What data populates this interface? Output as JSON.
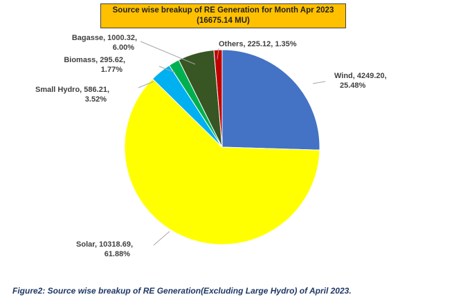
{
  "chart_data": {
    "type": "pie",
    "title": "Source wise breakup of RE Generation for Month Apr 2023",
    "subtitle": "(16675.14 MU)",
    "slices": [
      {
        "name": "Wind",
        "value": 4249.2,
        "percent": "25.48%",
        "value_label": "4249.20",
        "color": "#4472c4",
        "label_line1": "Wind, 4249.20,",
        "label_line2": "25.48%"
      },
      {
        "name": "Solar",
        "value": 10318.69,
        "percent": "61.88%",
        "value_label": "10318.69",
        "color": "#ffff00",
        "label_line1": "Solar, 10318.69,",
        "label_line2": "61.88%"
      },
      {
        "name": "Small Hydro",
        "value": 586.21,
        "percent": "3.52%",
        "value_label": "586.21",
        "color": "#00b0f0",
        "label_line1": "Small Hydro, 586.21,",
        "label_line2": "3.52%"
      },
      {
        "name": "Biomass",
        "value": 295.62,
        "percent": "1.77%",
        "value_label": "295.62",
        "color": "#00b050",
        "label_line1": "Biomass, 295.62,",
        "label_line2": "1.77%"
      },
      {
        "name": "Bagasse",
        "value": 1000.32,
        "percent": "6.00%",
        "value_label": "1000.32",
        "color": "#375623",
        "label_line1": "Bagasse, 1000.32,",
        "label_line2": "6.00%"
      },
      {
        "name": "Others",
        "value": 225.12,
        "percent": "1.35%",
        "value_label": "225.12",
        "color": "#c00000",
        "label_line1": "Others, 225.12, 1.35%",
        "label_line2": ""
      }
    ]
  },
  "caption": "Figure2: Source wise breakup of RE Generation(Excluding Large Hydro)  of April 2023."
}
